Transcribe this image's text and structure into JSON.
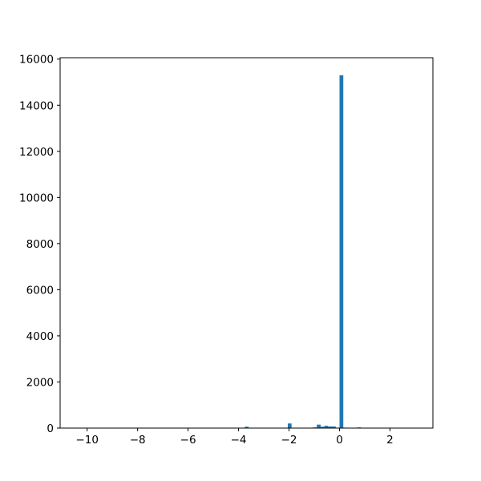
{
  "chart_data": {
    "type": "bar",
    "title": "",
    "xlabel": "",
    "ylabel": "",
    "xlim": [
      -11.07,
      3.7
    ],
    "ylim": [
      0,
      16060
    ],
    "grid": false,
    "bar_width": 0.15,
    "x_ticks": [
      -10,
      -8,
      -6,
      -4,
      -2,
      0,
      2
    ],
    "x_tick_labels": [
      "−10",
      "−8",
      "−6",
      "−4",
      "−2",
      "0",
      "2"
    ],
    "y_ticks": [
      0,
      2000,
      4000,
      6000,
      8000,
      10000,
      12000,
      14000,
      16000
    ],
    "y_tick_labels": [
      "0",
      "2000",
      "4000",
      "6000",
      "8000",
      "10000",
      "12000",
      "14000",
      "16000"
    ],
    "x": [
      -3.75,
      -2.05,
      -1.05,
      -0.9,
      -0.75,
      -0.6,
      -0.45,
      -0.3,
      0.0,
      0.15,
      0.3,
      0.7
    ],
    "values": [
      60,
      200,
      30,
      150,
      60,
      100,
      70,
      70,
      15300,
      20,
      10,
      30
    ]
  },
  "colors": {
    "bar": "#1f77b4",
    "axis": "#000000"
  }
}
